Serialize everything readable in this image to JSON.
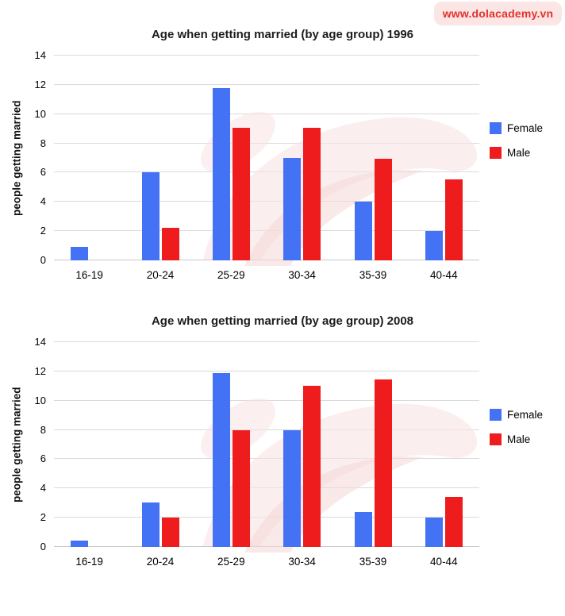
{
  "watermark_badge": {
    "text": "www.dolacademy.vn",
    "text_color": "#e5312b",
    "bg_color": "#fbe5e5"
  },
  "colors": {
    "female": "#4472f5",
    "male": "#ee1c1c",
    "grid": "#dadada",
    "axis_text": "#000000",
    "title_text": "#1c1c1c"
  },
  "chart_data": [
    {
      "type": "bar",
      "title": "Age when getting married (by age group) 1996",
      "xlabel": "",
      "ylabel": "people getting married",
      "categories": [
        "16-19",
        "20-24",
        "25-29",
        "30-34",
        "35-39",
        "40-44"
      ],
      "series": [
        {
          "name": "Female",
          "color": "#4472f5",
          "values": [
            0.95,
            6,
            11.8,
            7,
            4,
            2
          ]
        },
        {
          "name": "Male",
          "color": "#ee1c1c",
          "values": [
            0,
            2.25,
            9.05,
            9.05,
            6.95,
            5.55
          ]
        }
      ],
      "ylim": [
        0,
        14
      ],
      "yticks": [
        0,
        2,
        4,
        6,
        8,
        10,
        12,
        14
      ],
      "grid": true,
      "legend_position": "right"
    },
    {
      "type": "bar",
      "title": "Age when getting married (by age group) 2008",
      "xlabel": "",
      "ylabel": "people getting married",
      "categories": [
        "16-19",
        "20-24",
        "25-29",
        "30-34",
        "35-39",
        "40-44"
      ],
      "series": [
        {
          "name": "Female",
          "color": "#4472f5",
          "values": [
            0.45,
            3.05,
            11.9,
            8,
            2.4,
            2
          ]
        },
        {
          "name": "Male",
          "color": "#ee1c1c",
          "values": [
            0,
            2,
            8,
            11,
            11.45,
            3.4
          ]
        }
      ],
      "ylim": [
        0,
        14
      ],
      "yticks": [
        0,
        2,
        4,
        6,
        8,
        10,
        12,
        14
      ],
      "grid": true,
      "legend_position": "right"
    }
  ]
}
